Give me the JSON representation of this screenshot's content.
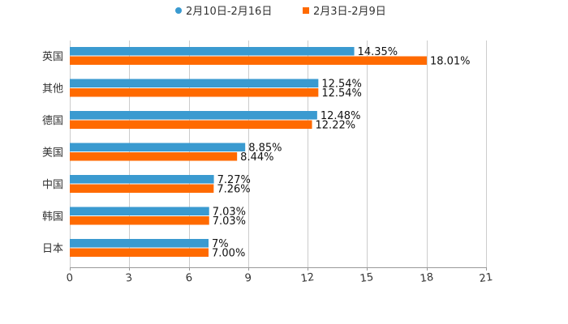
{
  "colors": {
    "series_1": "#3a9ad0",
    "series_2": "#ff6a00",
    "grid": "#cccccc",
    "axis": "#999999",
    "text": "#333333",
    "label": "#111111"
  },
  "chart_data": {
    "type": "bar",
    "orientation": "horizontal",
    "title": "",
    "xlabel": "",
    "ylabel": "",
    "categories": [
      "英国",
      "其他",
      "德国",
      "美国",
      "中国",
      "韩国",
      "日本"
    ],
    "series": [
      {
        "name": "2月10日-2月16日",
        "values": [
          14.35,
          12.54,
          12.48,
          8.85,
          7.27,
          7.03,
          7.0
        ],
        "labels": [
          "14.35%",
          "12.54%",
          "12.48%",
          "8.85%",
          "7.27%",
          "7.03%",
          "7%"
        ]
      },
      {
        "name": "2月3日-2月9日",
        "values": [
          18.01,
          12.54,
          12.22,
          8.44,
          7.26,
          7.03,
          7.0
        ],
        "labels": [
          "18.01%",
          "12.54%",
          "12.22%",
          "8.44%",
          "7.26%",
          "7.03%",
          "7.00%"
        ]
      }
    ],
    "xlim": [
      0,
      21
    ],
    "xticks": [
      "0",
      "3",
      "6",
      "9",
      "12",
      "15",
      "18",
      "21"
    ],
    "grid": true,
    "legend": "top-center"
  }
}
